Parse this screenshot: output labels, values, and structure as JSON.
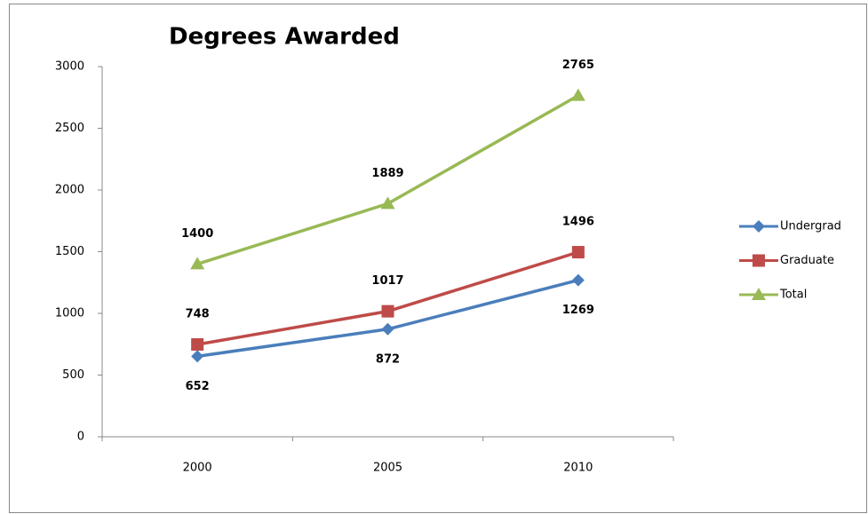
{
  "chart_data": {
    "type": "line",
    "title": "Degrees Awarded",
    "categories": [
      "2000",
      "2005",
      "2010"
    ],
    "series": [
      {
        "name": "Undergrad",
        "color": "#4a7ebb",
        "marker": "diamond",
        "values": [
          652,
          872,
          1269
        ]
      },
      {
        "name": "Graduate",
        "color": "#be4b48",
        "marker": "square",
        "values": [
          748,
          1017,
          1496
        ]
      },
      {
        "name": "Total",
        "color": "#98b954",
        "marker": "triangle",
        "values": [
          1400,
          1889,
          2765
        ]
      }
    ],
    "ylim": [
      0,
      3000
    ],
    "yticks": [
      0,
      500,
      1000,
      1500,
      2000,
      2500,
      3000
    ],
    "grid": false,
    "legend": "right"
  }
}
